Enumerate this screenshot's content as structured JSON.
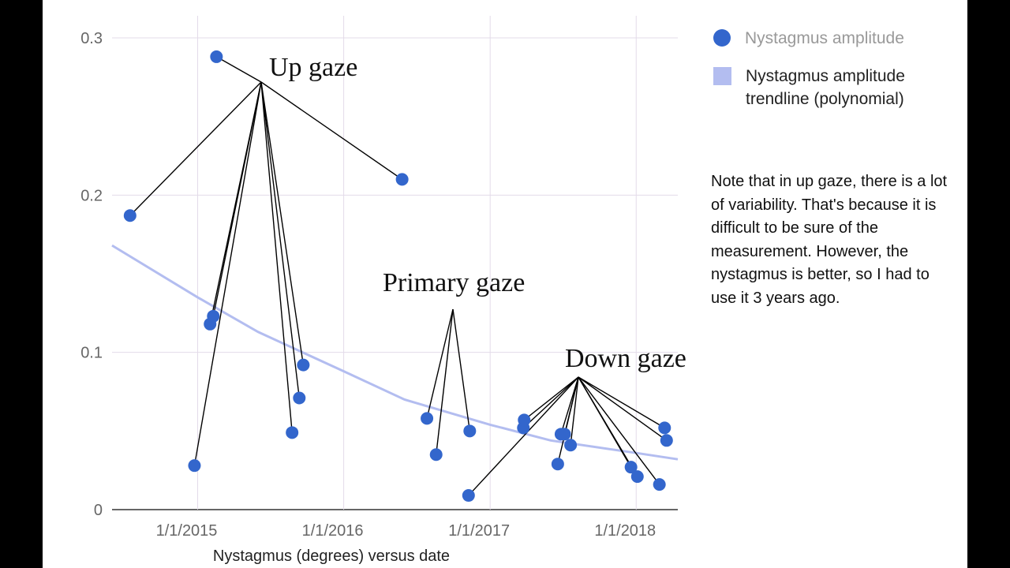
{
  "chart_data": {
    "type": "scatter",
    "title": "",
    "xlabel": "Nystagmus (degrees) versus date",
    "ylabel": "",
    "xlim": [
      "2014-06-01",
      "2018-04-15"
    ],
    "ylim": [
      0,
      0.3
    ],
    "y_ticks": [
      0,
      0.1,
      0.2,
      0.3
    ],
    "y_tick_labels": [
      "0",
      "0.1",
      "0.2",
      "0.3"
    ],
    "x_ticks": [
      "2015-01-01",
      "2016-01-01",
      "2017-01-01",
      "2018-01-01"
    ],
    "x_tick_labels": [
      "1/1/2015",
      "1/1/2016",
      "1/1/2017",
      "1/1/2018"
    ],
    "grid": true,
    "legend_position": "right",
    "legend": [
      "Nystagmus amplitude",
      "Nystagmus amplitude trendline (polynomial)"
    ],
    "colors": {
      "points": "#3366cc",
      "trendline": "#b3bdf0",
      "grid": "#e3dbe9"
    },
    "series": [
      {
        "name": "Nystagmus amplitude",
        "points": [
          {
            "x": "2014-07-16",
            "y": 0.187
          },
          {
            "x": "2014-12-24",
            "y": 0.028
          },
          {
            "x": "2015-02-01",
            "y": 0.118
          },
          {
            "x": "2015-02-09",
            "y": 0.123
          },
          {
            "x": "2015-02-17",
            "y": 0.288
          },
          {
            "x": "2015-08-25",
            "y": 0.049
          },
          {
            "x": "2015-09-12",
            "y": 0.071
          },
          {
            "x": "2015-09-22",
            "y": 0.092
          },
          {
            "x": "2016-05-26",
            "y": 0.21
          },
          {
            "x": "2016-07-27",
            "y": 0.058
          },
          {
            "x": "2016-08-19",
            "y": 0.035
          },
          {
            "x": "2016-11-08",
            "y": 0.009
          },
          {
            "x": "2016-11-11",
            "y": 0.05
          },
          {
            "x": "2017-03-25",
            "y": 0.052
          },
          {
            "x": "2017-03-27",
            "y": 0.057
          },
          {
            "x": "2017-06-19",
            "y": 0.029
          },
          {
            "x": "2017-06-27",
            "y": 0.048
          },
          {
            "x": "2017-07-06",
            "y": 0.048
          },
          {
            "x": "2017-07-21",
            "y": 0.041
          },
          {
            "x": "2017-12-19",
            "y": 0.027
          },
          {
            "x": "2018-01-04",
            "y": 0.021
          },
          {
            "x": "2018-02-28",
            "y": 0.016
          },
          {
            "x": "2018-03-13",
            "y": 0.052
          },
          {
            "x": "2018-03-18",
            "y": 0.044
          }
        ]
      },
      {
        "name": "Nystagmus amplitude trendline (polynomial)",
        "type": "line",
        "points": [
          {
            "x": "2014-06-01",
            "y": 0.168
          },
          {
            "x": "2015-01-01",
            "y": 0.135
          },
          {
            "x": "2015-06-01",
            "y": 0.113
          },
          {
            "x": "2016-01-01",
            "y": 0.088
          },
          {
            "x": "2016-06-01",
            "y": 0.07
          },
          {
            "x": "2017-01-01",
            "y": 0.054
          },
          {
            "x": "2017-06-01",
            "y": 0.044
          },
          {
            "x": "2018-01-01",
            "y": 0.036
          },
          {
            "x": "2018-04-15",
            "y": 0.032
          }
        ]
      }
    ],
    "annotations": [
      {
        "text": "Up gaze",
        "targets": [
          {
            "x": "2014-07-16",
            "y": 0.187
          },
          {
            "x": "2014-12-24",
            "y": 0.028
          },
          {
            "x": "2015-02-01",
            "y": 0.118
          },
          {
            "x": "2015-02-09",
            "y": 0.123
          },
          {
            "x": "2015-02-17",
            "y": 0.288
          },
          {
            "x": "2015-08-25",
            "y": 0.049
          },
          {
            "x": "2015-09-12",
            "y": 0.071
          },
          {
            "x": "2015-09-22",
            "y": 0.092
          },
          {
            "x": "2016-05-26",
            "y": 0.21
          }
        ]
      },
      {
        "text": "Primary gaze",
        "targets": [
          {
            "x": "2016-07-27",
            "y": 0.058
          },
          {
            "x": "2016-08-19",
            "y": 0.035
          },
          {
            "x": "2016-11-11",
            "y": 0.05
          }
        ]
      },
      {
        "text": "Down gaze",
        "targets": [
          {
            "x": "2016-11-08",
            "y": 0.009
          },
          {
            "x": "2017-03-25",
            "y": 0.052
          },
          {
            "x": "2017-03-27",
            "y": 0.057
          },
          {
            "x": "2017-06-19",
            "y": 0.029
          },
          {
            "x": "2017-06-27",
            "y": 0.048
          },
          {
            "x": "2017-07-06",
            "y": 0.048
          },
          {
            "x": "2017-07-21",
            "y": 0.041
          },
          {
            "x": "2017-12-19",
            "y": 0.027
          },
          {
            "x": "2018-01-04",
            "y": 0.021
          },
          {
            "x": "2018-02-28",
            "y": 0.016
          },
          {
            "x": "2018-03-13",
            "y": 0.052
          },
          {
            "x": "2018-03-18",
            "y": 0.044
          }
        ]
      }
    ]
  },
  "note": "Note that in up gaze, there is a lot of variability.  That's because it is difficult to be sure of the measurement.  However, the nystagmus is better, so I had to use it 3 years ago."
}
